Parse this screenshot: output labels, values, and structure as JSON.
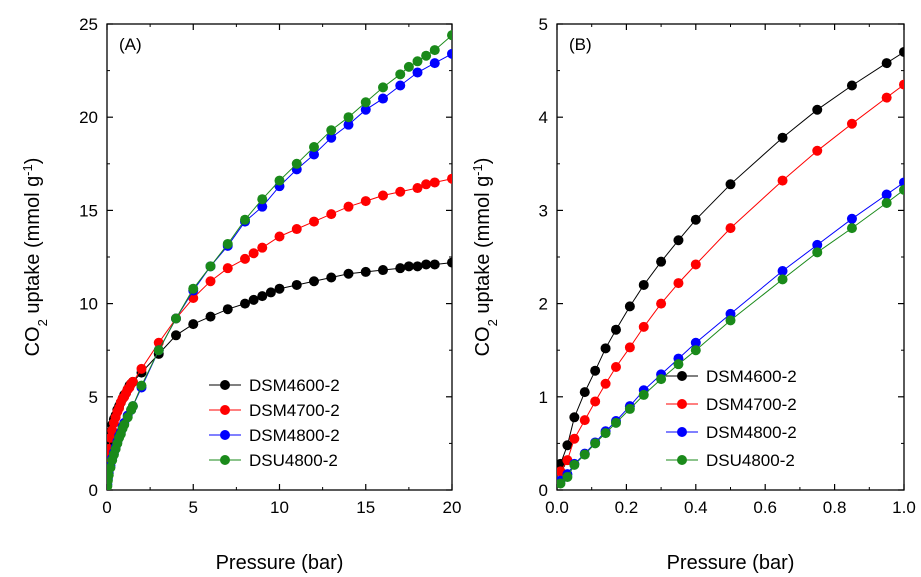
{
  "chart_data": [
    {
      "type": "scatter",
      "panel_label": "(A)",
      "xlabel": "Pressure (bar)",
      "ylabel_parts": [
        "CO",
        "2",
        " uptake (mmol g",
        "-1",
        ")"
      ],
      "xlim": [
        0,
        20
      ],
      "ylim": [
        0,
        25
      ],
      "xticks": [
        "0",
        "5",
        "10",
        "15",
        "20"
      ],
      "yticks": [
        "0",
        "5",
        "10",
        "15",
        "20",
        "25"
      ],
      "legend_position": "bottom-right",
      "series": [
        {
          "name": "DSM4600-2",
          "color": "#000000",
          "x": [
            0.02,
            0.05,
            0.1,
            0.15,
            0.2,
            0.3,
            0.4,
            0.5,
            0.6,
            0.7,
            0.8,
            0.9,
            1.0,
            1.1,
            1.2,
            1.3,
            1.4,
            1.5,
            2,
            3,
            4,
            5,
            6,
            7,
            8,
            8.5,
            9,
            9.5,
            10,
            11,
            12,
            13,
            14,
            15,
            16,
            17,
            17.5,
            18,
            18.5,
            19,
            20
          ],
          "y": [
            1.6,
            2.0,
            2.5,
            2.8,
            3.1,
            3.5,
            3.8,
            4.0,
            4.3,
            4.5,
            4.7,
            4.9,
            5.1,
            5.2,
            5.4,
            5.6,
            5.7,
            5.8,
            6.3,
            7.3,
            8.3,
            8.9,
            9.3,
            9.7,
            10.0,
            10.2,
            10.4,
            10.6,
            10.8,
            11.0,
            11.2,
            11.4,
            11.6,
            11.7,
            11.8,
            11.9,
            12.0,
            12.0,
            12.1,
            12.1,
            12.2
          ]
        },
        {
          "name": "DSM4700-2",
          "color": "#ff0000",
          "x": [
            0.02,
            0.05,
            0.1,
            0.2,
            0.3,
            0.4,
            0.5,
            0.6,
            0.7,
            0.8,
            0.9,
            1.0,
            1.1,
            1.2,
            1.3,
            1.4,
            1.5,
            2,
            3,
            4,
            5,
            6,
            7,
            8,
            8.5,
            9,
            10,
            11,
            12,
            13,
            14,
            15,
            16,
            17,
            18,
            18.5,
            19,
            20
          ],
          "y": [
            1.5,
            1.8,
            2.2,
            2.8,
            3.2,
            3.6,
            3.9,
            4.2,
            4.4,
            4.7,
            4.9,
            5.0,
            5.2,
            5.4,
            5.5,
            5.7,
            5.8,
            6.5,
            7.9,
            9.2,
            10.3,
            11.2,
            11.9,
            12.4,
            12.7,
            13.0,
            13.6,
            14.0,
            14.4,
            14.8,
            15.2,
            15.5,
            15.8,
            16.0,
            16.2,
            16.4,
            16.5,
            16.7
          ]
        },
        {
          "name": "DSM4800-2",
          "color": "#0000ff",
          "x": [
            0.02,
            0.05,
            0.1,
            0.2,
            0.3,
            0.4,
            0.5,
            0.6,
            0.7,
            0.8,
            0.9,
            1.0,
            1.2,
            1.4,
            1.5,
            2,
            3,
            4,
            5,
            6,
            7,
            8,
            9,
            10,
            11,
            12,
            13,
            14,
            15,
            16,
            17,
            18,
            19,
            20
          ],
          "y": [
            0.3,
            0.6,
            0.9,
            1.3,
            1.7,
            2.0,
            2.3,
            2.6,
            2.9,
            3.1,
            3.4,
            3.6,
            4.0,
            4.3,
            4.5,
            5.5,
            7.5,
            9.2,
            10.7,
            12.0,
            13.1,
            14.4,
            15.2,
            16.3,
            17.2,
            18.0,
            18.9,
            19.6,
            20.4,
            21.0,
            21.7,
            22.4,
            22.9,
            23.4
          ]
        },
        {
          "name": "DSU4800-2",
          "color": "#1a8a1a",
          "x": [
            0.02,
            0.05,
            0.1,
            0.2,
            0.3,
            0.4,
            0.5,
            0.6,
            0.7,
            0.8,
            0.9,
            1.0,
            1.2,
            1.4,
            1.5,
            2,
            3,
            4,
            5,
            6,
            7,
            8,
            9,
            10,
            11,
            12,
            13,
            14,
            15,
            16,
            17,
            17.5,
            18,
            18.5,
            19,
            20
          ],
          "y": [
            0.2,
            0.5,
            0.8,
            1.2,
            1.6,
            1.9,
            2.2,
            2.5,
            2.8,
            3.0,
            3.3,
            3.5,
            3.9,
            4.3,
            4.5,
            5.6,
            7.5,
            9.2,
            10.8,
            12.0,
            13.2,
            14.5,
            15.6,
            16.6,
            17.5,
            18.4,
            19.3,
            20.0,
            20.8,
            21.6,
            22.3,
            22.7,
            23.0,
            23.3,
            23.6,
            24.4
          ]
        }
      ],
      "fit_lines": true
    },
    {
      "type": "scatter",
      "panel_label": "(B)",
      "xlabel": "Pressure (bar)",
      "ylabel_parts": [
        "CO",
        "2",
        " uptake (mmol g",
        "-1",
        ")"
      ],
      "xlim": [
        0,
        1.0
      ],
      "ylim": [
        0,
        5
      ],
      "xticks": [
        "0.0",
        "0.2",
        "0.4",
        "0.6",
        "0.8",
        "1.0"
      ],
      "yticks": [
        "0",
        "1",
        "2",
        "3",
        "4",
        "5"
      ],
      "legend_position": "bottom-right",
      "series": [
        {
          "name": "DSM4600-2",
          "color": "#000000",
          "x": [
            0.01,
            0.03,
            0.05,
            0.08,
            0.11,
            0.14,
            0.17,
            0.21,
            0.25,
            0.3,
            0.35,
            0.4,
            0.5,
            0.65,
            0.75,
            0.85,
            0.95,
            1.0
          ],
          "y": [
            0.28,
            0.48,
            0.78,
            1.05,
            1.28,
            1.52,
            1.72,
            1.97,
            2.2,
            2.45,
            2.68,
            2.9,
            3.28,
            3.78,
            4.08,
            4.34,
            4.58,
            4.7
          ]
        },
        {
          "name": "DSM4700-2",
          "color": "#ff0000",
          "x": [
            0.01,
            0.03,
            0.05,
            0.08,
            0.11,
            0.14,
            0.17,
            0.21,
            0.25,
            0.3,
            0.35,
            0.4,
            0.5,
            0.65,
            0.75,
            0.85,
            0.95,
            1.0
          ],
          "y": [
            0.2,
            0.32,
            0.55,
            0.75,
            0.95,
            1.14,
            1.32,
            1.53,
            1.75,
            2.0,
            2.22,
            2.42,
            2.81,
            3.32,
            3.64,
            3.93,
            4.21,
            4.35
          ]
        },
        {
          "name": "DSM4800-2",
          "color": "#0000ff",
          "x": [
            0.01,
            0.03,
            0.05,
            0.08,
            0.11,
            0.14,
            0.17,
            0.21,
            0.25,
            0.3,
            0.35,
            0.4,
            0.5,
            0.65,
            0.75,
            0.85,
            0.95,
            1.0
          ],
          "y": [
            0.1,
            0.17,
            0.28,
            0.39,
            0.51,
            0.63,
            0.74,
            0.9,
            1.07,
            1.24,
            1.41,
            1.58,
            1.89,
            2.35,
            2.63,
            2.91,
            3.17,
            3.3
          ]
        },
        {
          "name": "DSU4800-2",
          "color": "#1a8a1a",
          "x": [
            0.01,
            0.03,
            0.05,
            0.08,
            0.11,
            0.14,
            0.17,
            0.21,
            0.25,
            0.3,
            0.35,
            0.4,
            0.5,
            0.65,
            0.75,
            0.85,
            0.95,
            1.0
          ],
          "y": [
            0.07,
            0.14,
            0.27,
            0.38,
            0.5,
            0.61,
            0.72,
            0.87,
            1.02,
            1.19,
            1.35,
            1.5,
            1.82,
            2.26,
            2.55,
            2.81,
            3.08,
            3.22
          ]
        }
      ],
      "fit_lines": true
    }
  ]
}
